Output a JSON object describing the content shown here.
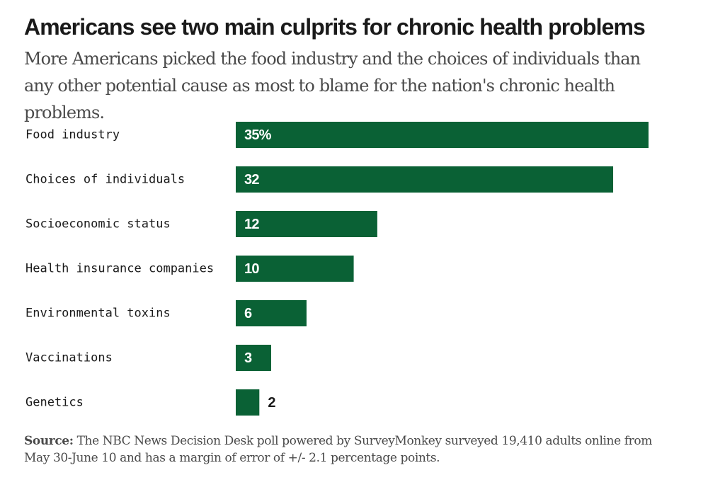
{
  "title": "Americans see two main culprits for chronic health problems",
  "subtitle": "More Americans picked the food industry and the choices of individuals than any other potential cause as most to blame for the nation's chronic health problems.",
  "source": {
    "label": "Source:",
    "text": "The NBC News Decision Desk poll powered by SurveyMonkey surveyed 19,410 adults online from May 30-June 10 and has a margin of error of +/- 2.1 percentage points."
  },
  "colors": {
    "bar": "#0a6135",
    "label_inside": "#ffffff",
    "label_outside": "#1a1a1a"
  },
  "chart_data": {
    "type": "bar",
    "orientation": "horizontal",
    "categories": [
      "Food industry",
      "Choices of individuals",
      "Socioeconomic status",
      "Health insurance companies",
      "Environmental toxins",
      "Vaccinations",
      "Genetics"
    ],
    "values": [
      35,
      32,
      12,
      10,
      6,
      3,
      2
    ],
    "value_labels": [
      "35%",
      "32",
      "12",
      "10",
      "6",
      "3",
      "2"
    ],
    "xlim": [
      0,
      35
    ],
    "grid": false,
    "legend": "none"
  }
}
